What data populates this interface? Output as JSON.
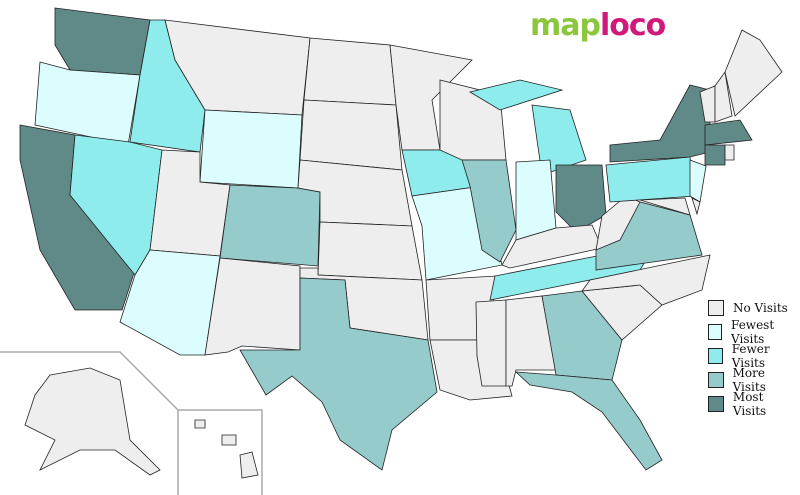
{
  "logo": {
    "part1": "map",
    "part2": "loco"
  },
  "legend": [
    {
      "key": "none",
      "label": "No Visits",
      "color": "#eeeeee"
    },
    {
      "key": "fewest",
      "label": "Fewest Visits",
      "color": "#dcfdfd"
    },
    {
      "key": "fewer",
      "label": "Fewer Visits",
      "color": "#8eecec"
    },
    {
      "key": "more",
      "label": "More Visits",
      "color": "#96cbcb"
    },
    {
      "key": "most",
      "label": "Most Visits",
      "color": "#5f8a88"
    }
  ],
  "states": {
    "WA": "most",
    "OR": "fewest",
    "CA": "most",
    "ID": "fewer",
    "NV": "fewer",
    "MT": "none",
    "WY": "fewest",
    "UT": "none",
    "AZ": "fewest",
    "CO": "more",
    "NM": "none",
    "ND": "none",
    "SD": "none",
    "NE": "none",
    "KS": "none",
    "OK": "none",
    "TX": "more",
    "MN": "none",
    "IA": "fewer",
    "MO": "fewest",
    "AR": "none",
    "LA": "none",
    "WI": "none",
    "IL": "more",
    "MI": "fewer",
    "IN": "fewest",
    "OH": "most",
    "KY": "none",
    "TN": "fewer",
    "MS": "none",
    "AL": "none",
    "GA": "more",
    "FL": "more",
    "SC": "none",
    "NC": "none",
    "VA": "more",
    "WV": "none",
    "PA": "fewer",
    "NY": "most",
    "NJ": "fewest",
    "MD": "none",
    "DE": "none",
    "VT": "none",
    "NH": "none",
    "ME": "none",
    "MA": "most",
    "CT": "most",
    "RI": "none",
    "AK": "none",
    "HI": "none"
  }
}
